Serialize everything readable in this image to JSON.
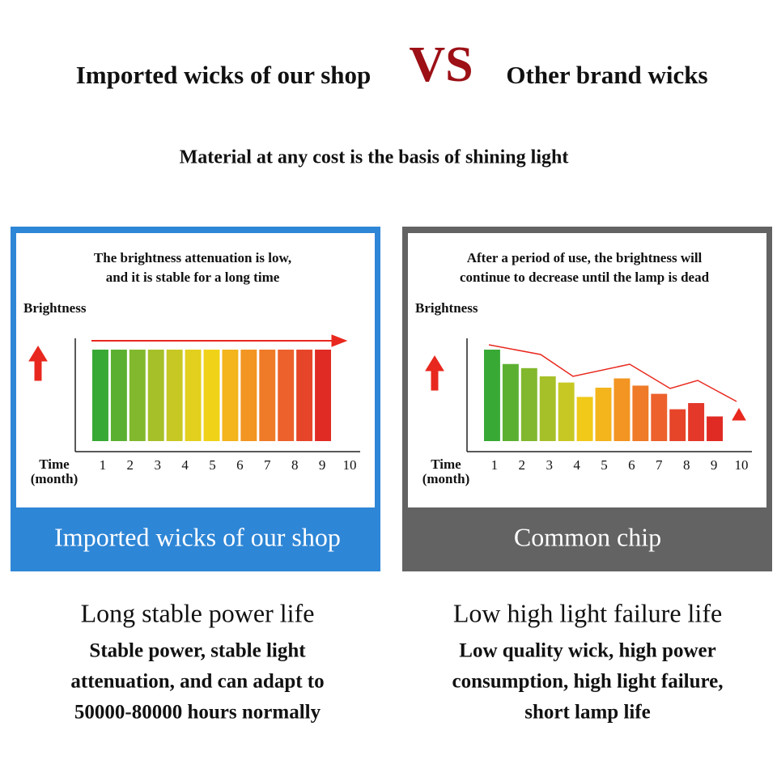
{
  "header": {
    "left": "Imported wicks of our shop",
    "vs": "VS",
    "right": "Other brand wicks",
    "subtitle": "Material at any cost is the basis of shining light"
  },
  "chart_data": [
    {
      "type": "bar",
      "title": [
        "The brightness attenuation is low,",
        "and it is stable for a long time"
      ],
      "ylabel": "Brightness",
      "xlabel": [
        "Time",
        "(month)"
      ],
      "values": [
        89,
        89,
        89,
        89,
        89,
        89,
        89,
        89,
        89,
        89,
        89,
        89,
        89
      ],
      "colors": [
        "#38a935",
        "#5cb031",
        "#82b82d",
        "#a6c029",
        "#c7c824",
        "#e3cf1e",
        "#f0d319",
        "#f3b41c",
        "#f29522",
        "#ef7a28",
        "#ec612c",
        "#e6452a",
        "#e02b24"
      ],
      "ylim": [
        0,
        100
      ],
      "xlim": [
        0,
        10
      ],
      "xticks": [
        1,
        2,
        3,
        4,
        5,
        6,
        7,
        8,
        9,
        10
      ]
    },
    {
      "type": "bar",
      "title": [
        "After a period of use, the brightness will",
        "continue to decrease until the lamp is dead"
      ],
      "ylabel": "Brightness",
      "xlabel": [
        "Time",
        "(month)"
      ],
      "values": [
        89,
        75,
        71,
        63,
        57,
        43,
        52,
        61,
        54,
        46,
        31,
        37,
        24
      ],
      "colors": [
        "#38a935",
        "#5cb031",
        "#82b82d",
        "#a6c029",
        "#c7c824",
        "#f0c919",
        "#f3b41c",
        "#f29522",
        "#ef7a28",
        "#ec612c",
        "#e6452a",
        "#e3382a",
        "#e02b24"
      ],
      "ylim": [
        0,
        100
      ],
      "xlim": [
        0,
        10
      ],
      "xticks": [
        1,
        2,
        3,
        4,
        5,
        6,
        7,
        8,
        9,
        10
      ]
    }
  ],
  "panels": [
    {
      "label": "Imported wicks of our shop",
      "heading": "Long stable power life",
      "text": [
        "Stable power, stable light",
        "attenuation, and can adapt to",
        "50000-80000 hours normally"
      ]
    },
    {
      "label": "Common chip",
      "heading": "Low high light failure life",
      "text": [
        "Low quality wick, high power",
        "consumption, high light failure,",
        "short lamp life"
      ]
    }
  ]
}
